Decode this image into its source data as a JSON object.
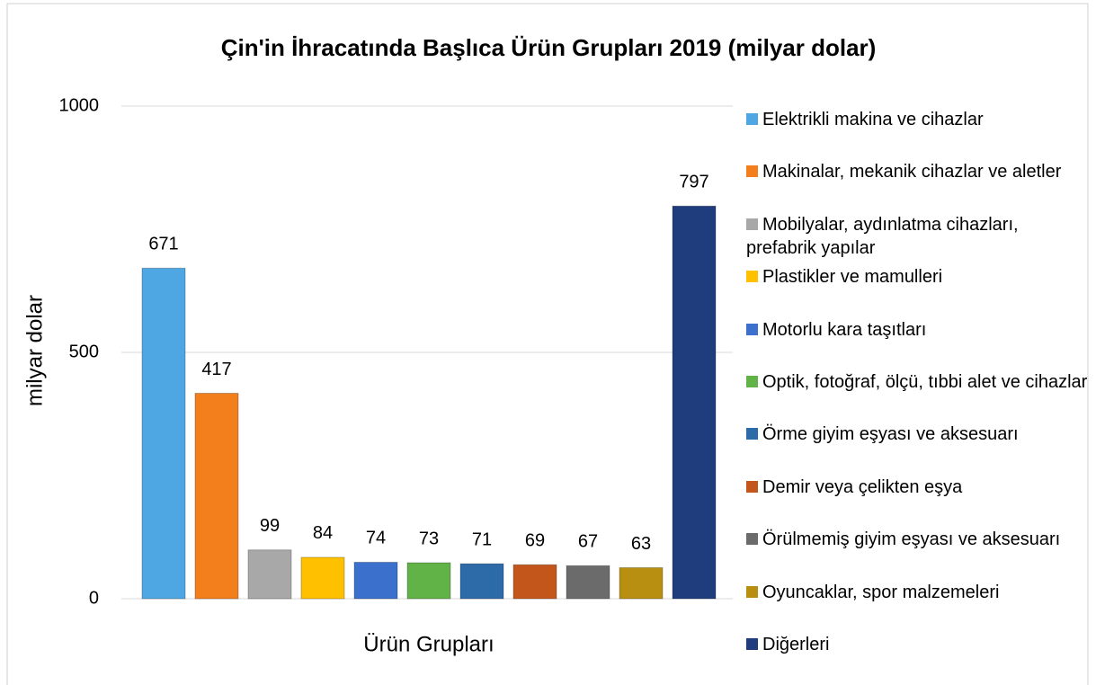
{
  "chart_data": {
    "type": "bar",
    "title": "Çin'in İhracatında Başlıca Ürün Grupları 2019 (milyar dolar)",
    "y_label": "milyar dolar",
    "categories": [
      "Ürün Grupları"
    ],
    "series": [
      {
        "name": "Elektrikli makina ve cihazlar",
        "color": "#4ea6e3",
        "values": [
          671
        ]
      },
      {
        "name": "Makinalar, mekanik cihazlar ve aletler",
        "color": "#f27e1c",
        "values": [
          417
        ]
      },
      {
        "name": "Mobilyalar, aydınlatma cihazları, prefabrik yapılar",
        "color": "#a8a8a8",
        "values": [
          99
        ]
      },
      {
        "name": "Plastikler ve mamulleri",
        "color": "#ffc000",
        "values": [
          84
        ]
      },
      {
        "name": "Motorlu kara taşıtları",
        "color": "#3b70cc",
        "values": [
          74
        ]
      },
      {
        "name": "Optik, fotoğraf, ölçü, tıbbi alet ve cihazlar",
        "color": "#62b347",
        "values": [
          73
        ]
      },
      {
        "name": "Örme giyim eşyası ve aksesuarı",
        "color": "#2c6aa8",
        "values": [
          71
        ]
      },
      {
        "name": "Demir veya çelikten eşya",
        "color": "#c2561b",
        "values": [
          69
        ]
      },
      {
        "name": "Örülmemiş giyim eşyası ve aksesuarı",
        "color": "#6b6b6b",
        "values": [
          67
        ]
      },
      {
        "name": "Oyuncaklar, spor malzemeleri",
        "color": "#b98f12",
        "values": [
          63
        ]
      },
      {
        "name": "Diğerleri",
        "color": "#1f3d7c",
        "values": [
          797
        ]
      }
    ],
    "ylim": [
      0,
      1000
    ],
    "yticks": [
      0,
      500,
      1000
    ],
    "grid": true,
    "legend": "right"
  }
}
